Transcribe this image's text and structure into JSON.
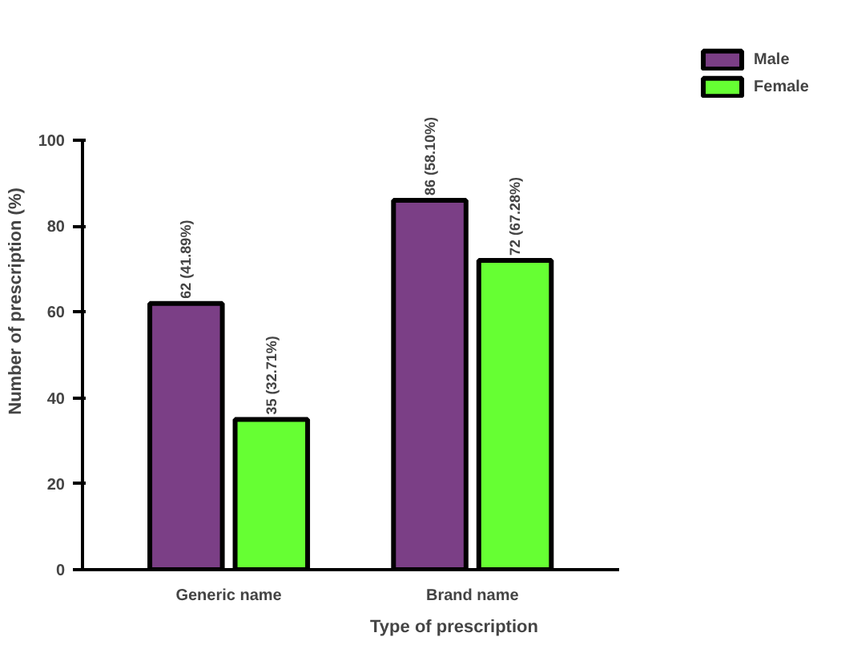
{
  "chart_data": {
    "type": "bar",
    "xlabel": "Type of prescription",
    "ylabel": "Number of prescription (%)",
    "categories": [
      "Generic name",
      "Brand name"
    ],
    "series": [
      {
        "name": "Male",
        "color": "#7b3f86",
        "values": [
          62,
          86
        ],
        "value_labels": [
          "62 (41.89%)",
          "86 (58.10%)"
        ]
      },
      {
        "name": "Female",
        "color": "#66ff33",
        "values": [
          35,
          72
        ],
        "value_labels": [
          "35 (32.71%)",
          "72 (67.28%)"
        ]
      }
    ],
    "ylim": [
      0,
      100
    ],
    "yticks": [
      0,
      20,
      40,
      60,
      80,
      100
    ],
    "grid": false,
    "legend": "right"
  }
}
